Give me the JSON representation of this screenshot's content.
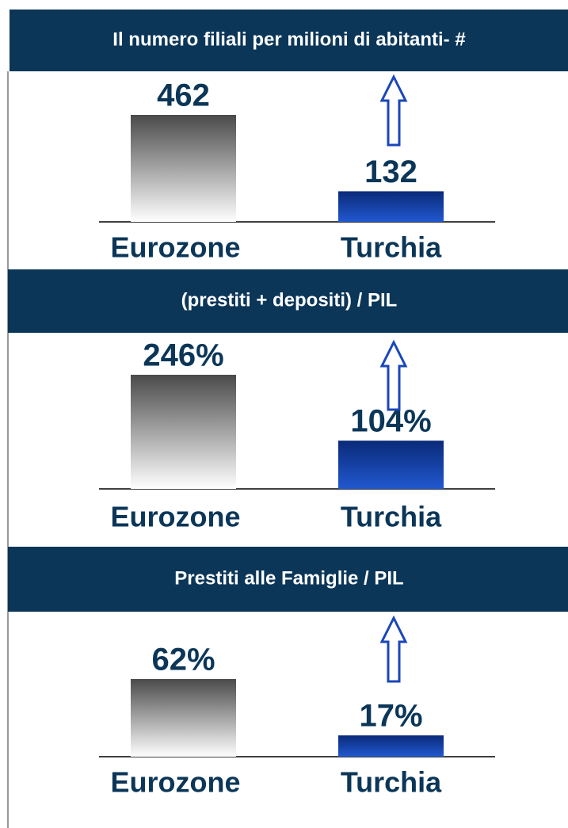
{
  "chart_data": [
    {
      "type": "bar",
      "title": "Il numero filiali per milioni di abitanti- #",
      "categories": [
        "Eurozone",
        "Turchia"
      ],
      "values": [
        462,
        132
      ],
      "colors": [
        "#4a4a4a",
        "#0a2a78"
      ]
    },
    {
      "type": "bar",
      "title": "(prestiti + depositi) / PIL",
      "categories": [
        "Eurozone",
        "Turchia"
      ],
      "values": [
        246,
        104
      ],
      "value_labels": [
        "246%",
        "104%"
      ],
      "colors": [
        "#4a4a4a",
        "#0a2a78"
      ]
    },
    {
      "type": "bar",
      "title": "Prestiti alle Famiglie / PIL",
      "categories": [
        "Eurozone",
        "Turchia"
      ],
      "values": [
        62,
        17
      ],
      "value_labels": [
        "62%",
        "17%"
      ],
      "colors": [
        "#4a4a4a",
        "#0a2a78"
      ]
    }
  ]
}
